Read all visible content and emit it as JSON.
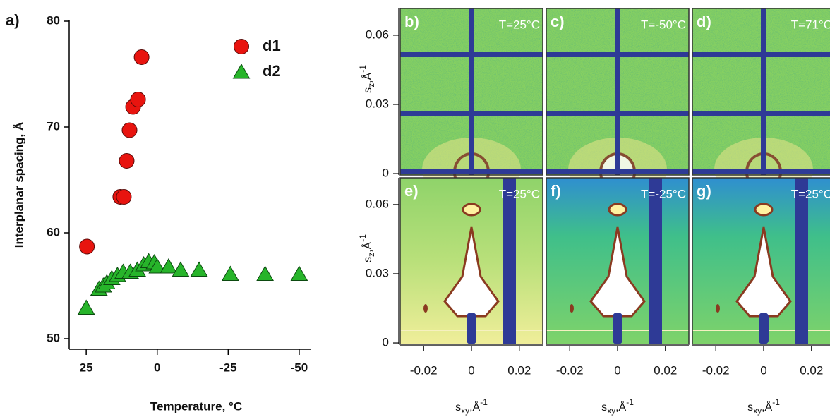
{
  "chart_data": [
    {
      "type": "scatter",
      "panel_label": "a)",
      "xlabel": "Temperature, °C",
      "ylabel": "Interplanar spacing, Å",
      "xlim": [
        31,
        -54
      ],
      "xticks": [
        25,
        0,
        -25,
        -50
      ],
      "ylim": [
        49,
        80
      ],
      "yticks": [
        50,
        60,
        70,
        80
      ],
      "legend": "top-right",
      "series": [
        {
          "name": "d1",
          "marker": "circle",
          "color": "#e8140f",
          "x": [
            24.75,
            13,
            11.75,
            10.75,
            9.75,
            8.5,
            6.75,
            5.5
          ],
          "values": [
            58.7,
            63.4,
            63.4,
            66.8,
            69.7,
            71.9,
            72.6,
            76.6
          ]
        },
        {
          "name": "d2",
          "marker": "triangle",
          "color": "#27b42a",
          "x": [
            25,
            20.5,
            19,
            17.75,
            16,
            14,
            12,
            9.5,
            7,
            4.75,
            3,
            1,
            0,
            -4,
            -8.25,
            -14.75,
            -25.75,
            -38,
            -50
          ],
          "values": [
            52.9,
            54.7,
            55.0,
            55.3,
            55.7,
            56.0,
            56.3,
            56.3,
            56.5,
            57.0,
            57.3,
            57.2,
            56.8,
            56.8,
            56.5,
            56.5,
            56.1,
            56.1,
            56.1
          ]
        }
      ]
    },
    {
      "type": "image",
      "xlabel": {
        "base": "s",
        "sub": "xy",
        "mid": ",Å",
        "sup": "-1"
      },
      "ylabel": {
        "base": "s",
        "sub": "z",
        "mid": ",Å",
        "sup": "-1"
      },
      "xlim": [
        -0.0298,
        0.0298
      ],
      "xticks": [
        -0.02,
        0,
        0.02
      ],
      "ylim": [
        -0.0006,
        0.0716
      ],
      "yticks": [
        0,
        0.03,
        0.06
      ],
      "panels": [
        {
          "label": "b)",
          "temperature": "T=25°C",
          "kind": "grid"
        },
        {
          "label": "c)",
          "temperature": "T=-50°C",
          "kind": "grid"
        },
        {
          "label": "d)",
          "temperature": "T=71°C",
          "kind": "grid"
        },
        {
          "label": "e)",
          "temperature": "T=25°C",
          "kind": "streak"
        },
        {
          "label": "f)",
          "temperature": "T=-25°C",
          "kind": "streak"
        },
        {
          "label": "g)",
          "temperature": "T=25°C",
          "kind": "streak"
        }
      ]
    }
  ]
}
